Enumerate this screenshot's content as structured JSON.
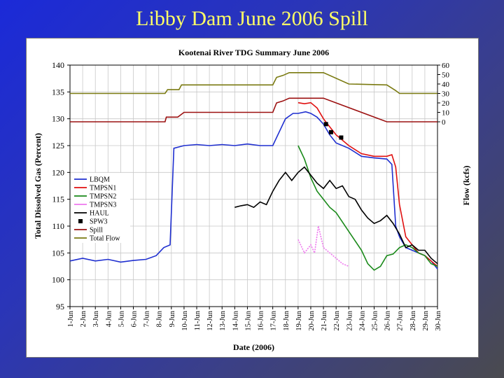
{
  "slide": {
    "title": "Libby Dam June 2006 Spill"
  },
  "chart_data": {
    "type": "line",
    "title": "Kootenai River TDG Summary June 2006",
    "xlabel": "Date (2006)",
    "ylabel": "Total Dissolved Gas (Percent)",
    "y2label": "Flow (kcfs)",
    "ylim": [
      95,
      140
    ],
    "yticks": [
      95,
      100,
      105,
      110,
      115,
      120,
      125,
      130,
      135,
      140
    ],
    "y2ticks": [
      "60",
      "50",
      "40",
      "30",
      "20",
      "10",
      "0"
    ],
    "y2lim": [
      0,
      60
    ],
    "xlim": [
      1,
      30
    ],
    "xticks": [
      "1-Jun",
      "2-Jun",
      "3-Jun",
      "4-Jun",
      "5-Jun",
      "6-Jun",
      "7-Jun",
      "8-Jun",
      "9-Jun",
      "10-Jun",
      "11-Jun",
      "12-Jun",
      "13-Jun",
      "14-Jun",
      "15-Jun",
      "16-Jun",
      "17-Jun",
      "18-Jun",
      "19-Jun",
      "20-Jun",
      "21-Jun",
      "22-Jun",
      "23-Jun",
      "24-Jun",
      "25-Jun",
      "26-Jun",
      "27-Jun",
      "28-Jun",
      "29-Jun",
      "30-Jun"
    ],
    "grid": true,
    "legend_position": "left",
    "series": [
      {
        "name": "LBQM",
        "color": "#1f2fd0",
        "axis": "left",
        "x": [
          1,
          2,
          3,
          4,
          5,
          6,
          7,
          7.8,
          8.4,
          8.9,
          9.2,
          10,
          11,
          12,
          13,
          14,
          15,
          16,
          17,
          18,
          18.6,
          19,
          19.6,
          20,
          20.5,
          21,
          21.5,
          22,
          23,
          24,
          25,
          26,
          26.4,
          26.7,
          27,
          27.5,
          28,
          28.5,
          29,
          29.5,
          30
        ],
        "y": [
          103.5,
          104,
          103.5,
          103.8,
          103.3,
          103.6,
          103.8,
          104.5,
          106,
          106.5,
          124.5,
          125,
          125.2,
          125,
          125.2,
          125,
          125.3,
          125,
          125,
          130,
          131,
          131,
          131.3,
          131,
          130.3,
          129,
          127,
          125.5,
          124.5,
          123,
          122.7,
          122.5,
          121.5,
          110,
          108,
          106,
          105.5,
          105,
          104.5,
          103.5,
          102
        ]
      },
      {
        "name": "TMPSN1",
        "color": "#e01010",
        "axis": "left",
        "x": [
          19,
          19.5,
          20,
          20.5,
          21,
          21.5,
          22,
          23,
          24,
          25,
          26,
          26.4,
          26.7,
          27,
          27.5,
          28,
          28.5,
          29,
          29.5,
          30
        ],
        "y": [
          133,
          132.8,
          133,
          132,
          130,
          128.5,
          127,
          125,
          123.5,
          123,
          123,
          123.3,
          121,
          114,
          108,
          106.5,
          105,
          104.5,
          103.5,
          102.5
        ]
      },
      {
        "name": "TMPSN2",
        "color": "#1a8a1a",
        "axis": "left",
        "x": [
          19,
          19.5,
          20,
          20.5,
          21,
          21.5,
          22,
          23,
          24,
          24.5,
          25,
          25.5,
          26,
          26.5,
          27,
          27.5,
          28,
          28.5,
          29,
          29.5,
          30
        ],
        "y": [
          125,
          122.5,
          119,
          116.5,
          115,
          113.5,
          112.5,
          109,
          105.5,
          103,
          101.8,
          102.5,
          104.5,
          104.8,
          106,
          106.5,
          106,
          105,
          104.5,
          103,
          102.5
        ]
      },
      {
        "name": "TMPSN3",
        "color": "#ee77ee",
        "axis": "left",
        "x": [
          19,
          19.5,
          20,
          20.3,
          20.6,
          21,
          21.5,
          22,
          22.5,
          23
        ],
        "y": [
          107.5,
          105,
          106.5,
          105,
          110,
          106,
          105,
          104,
          103,
          102.5
        ]
      },
      {
        "name": "HAUL",
        "color": "#000000",
        "axis": "left",
        "x": [
          14,
          14.5,
          15,
          15.5,
          16,
          16.5,
          17,
          17.5,
          18,
          18.5,
          19,
          19.5,
          20,
          20.5,
          21,
          21.5,
          22,
          22.5,
          23,
          23.5,
          24,
          24.5,
          25,
          25.5,
          26,
          26.5,
          27,
          27.5,
          28,
          28.5,
          29,
          29.5,
          30
        ],
        "y": [
          113.5,
          113.8,
          114,
          113.5,
          114.5,
          114,
          116.5,
          118.5,
          120,
          118.5,
          120,
          121,
          119.5,
          118,
          117,
          118.5,
          117,
          117.5,
          115.5,
          115,
          113,
          111.5,
          110.5,
          111,
          112,
          110.5,
          108.5,
          106,
          106.5,
          105.5,
          105.5,
          104,
          103
        ]
      },
      {
        "name": "SPW3",
        "color": "#000000",
        "axis": "left",
        "style": "markers",
        "x": [
          21.2,
          21.6,
          22.4
        ],
        "y": [
          129,
          127.5,
          126.5
        ]
      },
      {
        "name": "Spill",
        "color": "#9c1010",
        "axis": "right",
        "x": [
          1,
          8.5,
          8.6,
          9.5,
          10,
          10.2,
          17,
          17.3,
          17.8,
          18.3,
          19,
          21,
          26,
          26.6,
          26.8,
          28,
          30
        ],
        "y": [
          0,
          0,
          5,
          5,
          10,
          10,
          10,
          20,
          22,
          25,
          25,
          25,
          0,
          0,
          0,
          0,
          0
        ]
      },
      {
        "name": "Total Flow",
        "color": "#7a7a10",
        "axis": "right",
        "x": [
          1,
          8,
          8.5,
          8.7,
          9.6,
          9.8,
          17,
          17.3,
          17.8,
          18.3,
          19,
          21,
          23,
          26,
          26.7,
          27,
          30
        ],
        "y": [
          30,
          30,
          30,
          34,
          34,
          39,
          39,
          47,
          49,
          52,
          52,
          52,
          40,
          39,
          33,
          30,
          30
        ]
      }
    ]
  }
}
